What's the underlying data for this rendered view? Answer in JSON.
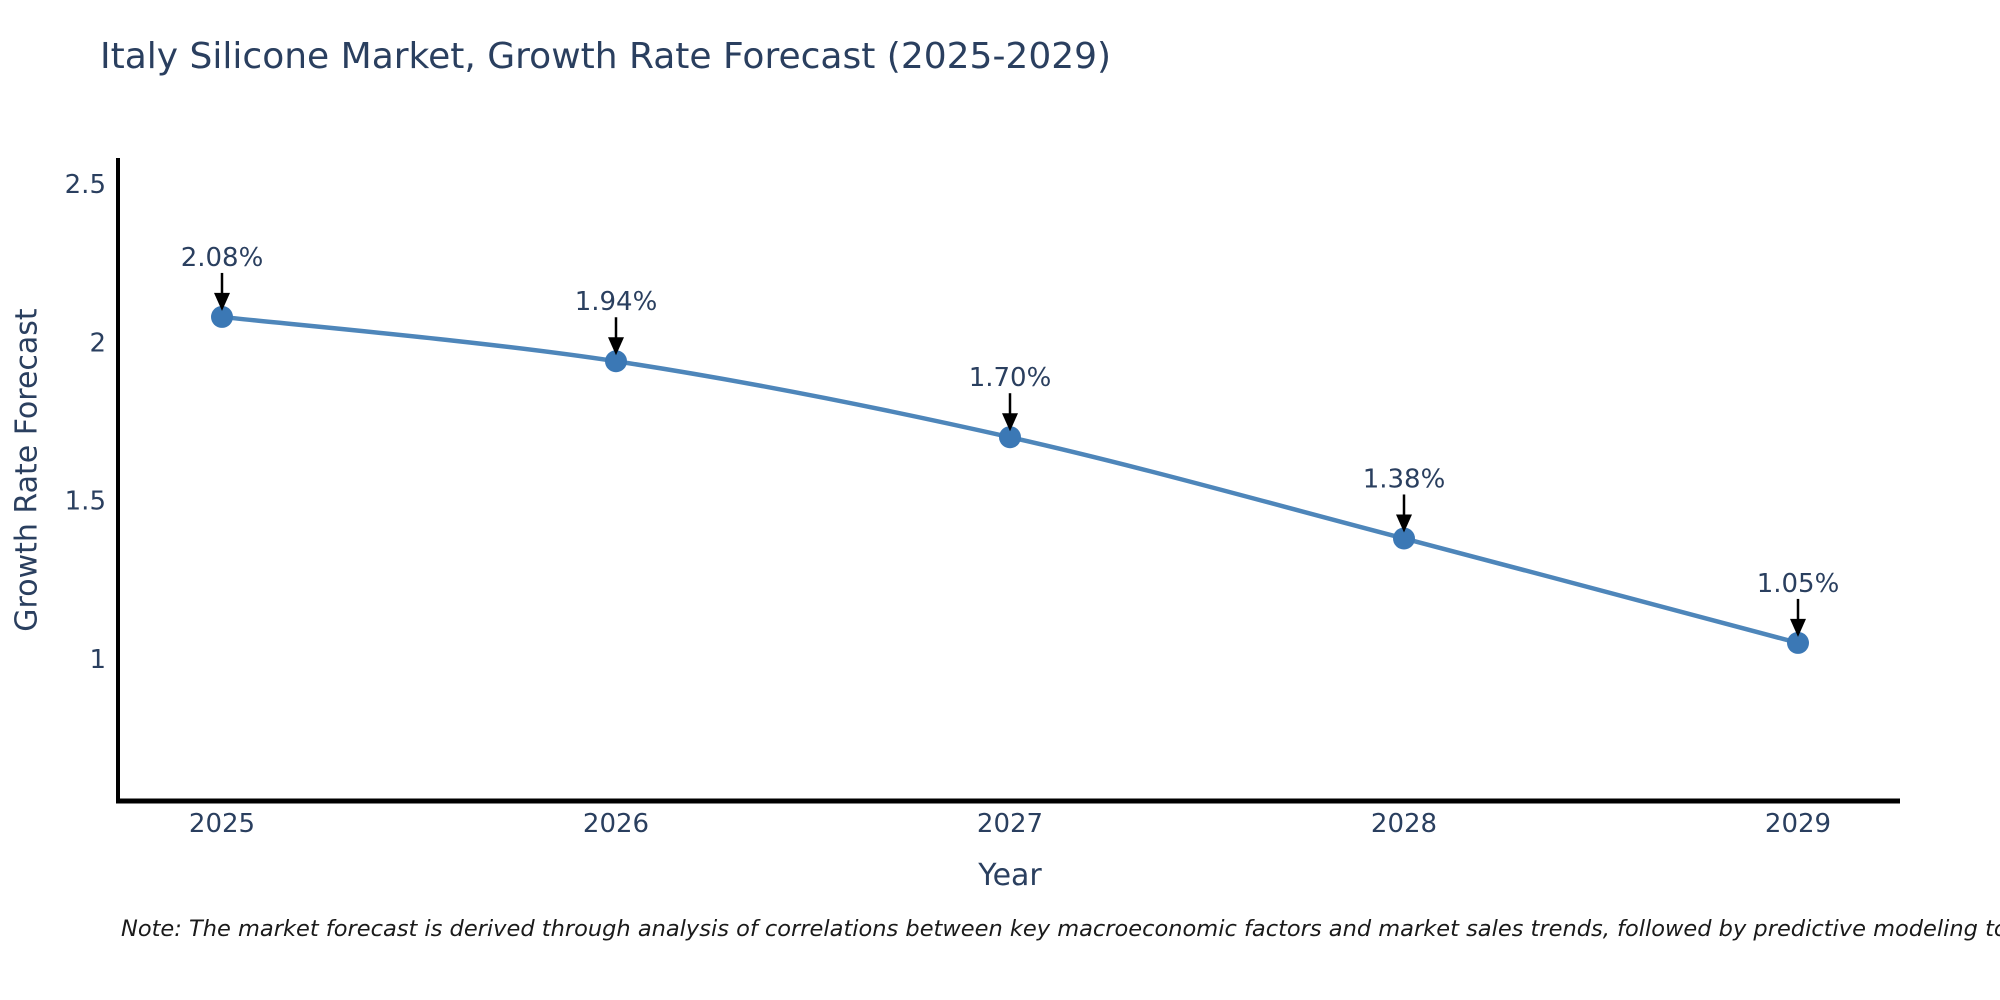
{
  "title": "Italy Silicone Market, Growth Rate Forecast (2025-2029)",
  "note": "Note: The market forecast is derived through analysis of correlations between key macroeconomic factors and market sales trends, followed by predictive modeling to project future sales",
  "chart_data": {
    "type": "line",
    "title": "Italy Silicone Market, Growth Rate Forecast (2025-2029)",
    "xlabel": "Year",
    "ylabel": "Growth Rate Forecast",
    "categories": [
      "2025",
      "2026",
      "2027",
      "2028",
      "2029"
    ],
    "series": [
      {
        "name": "Growth Rate Forecast",
        "values": [
          2.08,
          1.94,
          1.7,
          1.38,
          1.05
        ],
        "point_labels": [
          "2.08%",
          "1.94%",
          "1.70%",
          "1.38%",
          "1.05%"
        ]
      }
    ],
    "yticks": [
      2.5,
      2.0,
      1.5,
      1.0
    ],
    "ytick_labels": [
      "2.5",
      "2",
      "1.5",
      "1"
    ],
    "ylim": [
      0.55,
      2.58
    ],
    "grid": false,
    "legend": "none",
    "line_shape": "spline",
    "marker": "circle",
    "annotation_arrows": true,
    "colors": {
      "line": "#4e86ba",
      "marker": "#3b78b5",
      "axis_spine": "#000000",
      "tick_text": "#2a3f5f",
      "annotation_text": "#2a3f5f",
      "arrow": "#000000",
      "title_text": "#2a3f5f",
      "background": "#ffffff"
    }
  }
}
